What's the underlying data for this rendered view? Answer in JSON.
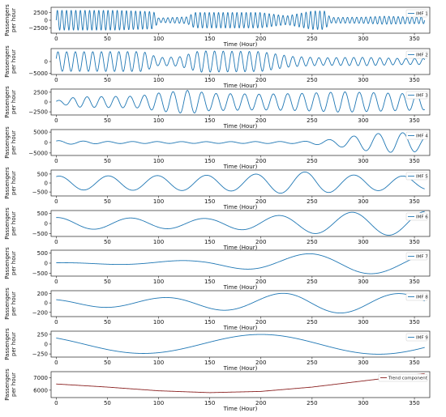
{
  "chart_data": [
    {
      "type": "line",
      "name": "IMF 1",
      "color": "#1f77b4",
      "ylabel": "Passengers\nper hour",
      "xlabel": "Time (Hour)",
      "ylim": [
        -4200,
        4200
      ],
      "yticks": [
        -2500,
        0,
        2500
      ],
      "xlim": [
        -5,
        365
      ],
      "xticks": [
        0,
        50,
        100,
        150,
        200,
        250,
        300,
        350
      ],
      "series": [
        {
          "name": "IMF 1",
          "period": 4.5,
          "amp": [
            [
              0,
              3200
            ],
            [
              60,
              3200
            ],
            [
              95,
              2800
            ],
            [
              100,
              700
            ],
            [
              128,
              1100
            ],
            [
              135,
              2500
            ],
            [
              200,
              2500
            ],
            [
              225,
              1400
            ],
            [
              250,
              3000
            ],
            [
              262,
              3000
            ],
            [
              268,
              900
            ],
            [
              300,
              1000
            ],
            [
              320,
              1300
            ],
            [
              345,
              1100
            ],
            [
              360,
              1100
            ]
          ]
        }
      ]
    },
    {
      "type": "line",
      "name": "IMF 2",
      "color": "#1f77b4",
      "ylabel": "Passengers\nper hour",
      "xlabel": "Time (Hour)",
      "ylim": [
        -5600,
        5600
      ],
      "yticks": [
        -5000,
        0
      ],
      "xlim": [
        -5,
        365
      ],
      "xticks": [
        0,
        50,
        100,
        150,
        200,
        250,
        300,
        350
      ],
      "series": [
        {
          "name": "IMF 2",
          "period": 8.5,
          "amp": [
            [
              0,
              4200
            ],
            [
              85,
              4300
            ],
            [
              100,
              1700
            ],
            [
              120,
              2000
            ],
            [
              140,
              4600
            ],
            [
              200,
              4300
            ],
            [
              230,
              2200
            ],
            [
              260,
              1600
            ],
            [
              300,
              1800
            ],
            [
              340,
              1300
            ],
            [
              360,
              1300
            ]
          ]
        }
      ]
    },
    {
      "type": "line",
      "name": "IMF 3",
      "color": "#1f77b4",
      "ylabel": "Passengers\nper hour",
      "xlabel": "Time (Hour)",
      "ylim": [
        -3300,
        3300
      ],
      "yticks": [
        -2500,
        0,
        2500
      ],
      "xlim": [
        -5,
        365
      ],
      "xticks": [
        0,
        50,
        100,
        150,
        200,
        250,
        300,
        350
      ],
      "series": [
        {
          "name": "IMF 3",
          "period": 14,
          "amp": [
            [
              0,
              300
            ],
            [
              20,
              1300
            ],
            [
              80,
              1500
            ],
            [
              100,
              2300
            ],
            [
              130,
              3000
            ],
            [
              150,
              2200
            ],
            [
              200,
              2000
            ],
            [
              240,
              2200
            ],
            [
              280,
              2600
            ],
            [
              320,
              2300
            ],
            [
              360,
              2000
            ]
          ]
        }
      ]
    },
    {
      "type": "line",
      "name": "IMF 4",
      "color": "#1f77b4",
      "ylabel": "Passengers\nper hour",
      "xlabel": "Time (Hour)",
      "ylim": [
        -6200,
        6200
      ],
      "yticks": [
        -5000,
        0,
        5000
      ],
      "xlim": [
        -5,
        365
      ],
      "xticks": [
        0,
        50,
        100,
        150,
        200,
        250,
        300,
        350
      ],
      "series": [
        {
          "name": "IMF 4",
          "period": 24,
          "amp": [
            [
              0,
              900
            ],
            [
              50,
              500
            ],
            [
              150,
              400
            ],
            [
              240,
              500
            ],
            [
              270,
              1500
            ],
            [
              300,
              3800
            ],
            [
              330,
              4800
            ],
            [
              350,
              4500
            ],
            [
              360,
              3000
            ]
          ]
        }
      ]
    },
    {
      "type": "line",
      "name": "IMF 5",
      "color": "#1f77b4",
      "ylabel": "Passengers\nper hour",
      "xlabel": "Time (Hour)",
      "ylim": [
        -720,
        720
      ],
      "yticks": [
        -500,
        0,
        500
      ],
      "xlim": [
        -5,
        365
      ],
      "xticks": [
        0,
        50,
        100,
        150,
        200,
        250,
        300,
        350
      ],
      "series": [
        {
          "name": "IMF 5",
          "period": 48,
          "amp": [
            [
              0,
              380
            ],
            [
              60,
              400
            ],
            [
              130,
              420
            ],
            [
              180,
              450
            ],
            [
              230,
              600
            ],
            [
              250,
              620
            ],
            [
              280,
              450
            ],
            [
              320,
              420
            ],
            [
              360,
              350
            ]
          ]
        }
      ]
    },
    {
      "type": "line",
      "name": "IMF 6",
      "color": "#1f77b4",
      "ylabel": "Passengers\nper hour",
      "xlabel": "Time (Hour)",
      "ylim": [
        -650,
        650
      ],
      "yticks": [
        -500,
        0,
        500
      ],
      "xlim": [
        -5,
        365
      ],
      "xticks": [
        0,
        50,
        100,
        150,
        200,
        250,
        300,
        350
      ],
      "series": [
        {
          "name": "IMF 6",
          "period": 72,
          "amp": [
            [
              0,
              300
            ],
            [
              150,
              250
            ],
            [
              200,
              350
            ],
            [
              250,
              500
            ],
            [
              300,
              580
            ],
            [
              360,
              600
            ]
          ]
        }
      ]
    },
    {
      "type": "line",
      "name": "IMF 7",
      "color": "#1f77b4",
      "ylabel": "Passengers\nper hour",
      "xlabel": "Time (Hour)",
      "ylim": [
        -650,
        650
      ],
      "yticks": [
        -500,
        0,
        500
      ],
      "xlim": [
        -5,
        365
      ],
      "xticks": [
        0,
        50,
        100,
        150,
        200,
        250,
        300,
        350
      ],
      "series": [
        {
          "name": "IMF 7",
          "period": 125,
          "amp": [
            [
              0,
              20
            ],
            [
              80,
              80
            ],
            [
              140,
              150
            ],
            [
              200,
              350
            ],
            [
              250,
              480
            ],
            [
              290,
              540
            ],
            [
              360,
              500
            ]
          ]
        }
      ]
    },
    {
      "type": "line",
      "name": "IMF 8",
      "color": "#1f77b4",
      "ylabel": "Passengers\nper hour",
      "xlabel": "Time (Hour)",
      "ylim": [
        -290,
        260
      ],
      "yticks": [
        -200,
        0,
        200
      ],
      "xlim": [
        -5,
        365
      ],
      "xticks": [
        0,
        50,
        100,
        150,
        200,
        250,
        300,
        350
      ],
      "series": [
        {
          "name": "IMF 8",
          "period": 115,
          "amp": [
            [
              0,
              80
            ],
            [
              100,
              110
            ],
            [
              170,
              160
            ],
            [
              240,
              220
            ],
            [
              300,
              210
            ],
            [
              360,
              190
            ]
          ]
        }
      ]
    },
    {
      "type": "line",
      "name": "IMF 9",
      "color": "#1f77b4",
      "ylabel": "Passengers\nper hour",
      "xlabel": "Time (Hour)",
      "ylim": [
        -330,
        330
      ],
      "yticks": [
        -250,
        0,
        250
      ],
      "xlim": [
        -5,
        365
      ],
      "xticks": [
        0,
        50,
        100,
        150,
        200,
        250,
        300,
        350
      ],
      "series": [
        {
          "name": "IMF 9",
          "period": 230,
          "amp": [
            [
              0,
              230
            ],
            [
              360,
              260
            ]
          ]
        }
      ]
    },
    {
      "type": "line",
      "name": "Trend component",
      "color": "#8b2222",
      "ylabel": "Passengers\nper hour",
      "xlabel": "Time (Hour)",
      "ylim": [
        5400,
        7500
      ],
      "yticks": [
        6000,
        7000
      ],
      "xlim": [
        -5,
        365
      ],
      "xticks": [
        0,
        50,
        100,
        150,
        200,
        250,
        300,
        350
      ],
      "series": [
        {
          "name": "Trend component",
          "points": [
            [
              0,
              6500
            ],
            [
              50,
              6250
            ],
            [
              100,
              5950
            ],
            [
              150,
              5800
            ],
            [
              200,
              5900
            ],
            [
              250,
              6250
            ],
            [
              300,
              6750
            ],
            [
              340,
              7150
            ],
            [
              360,
              7350
            ]
          ]
        }
      ]
    }
  ]
}
